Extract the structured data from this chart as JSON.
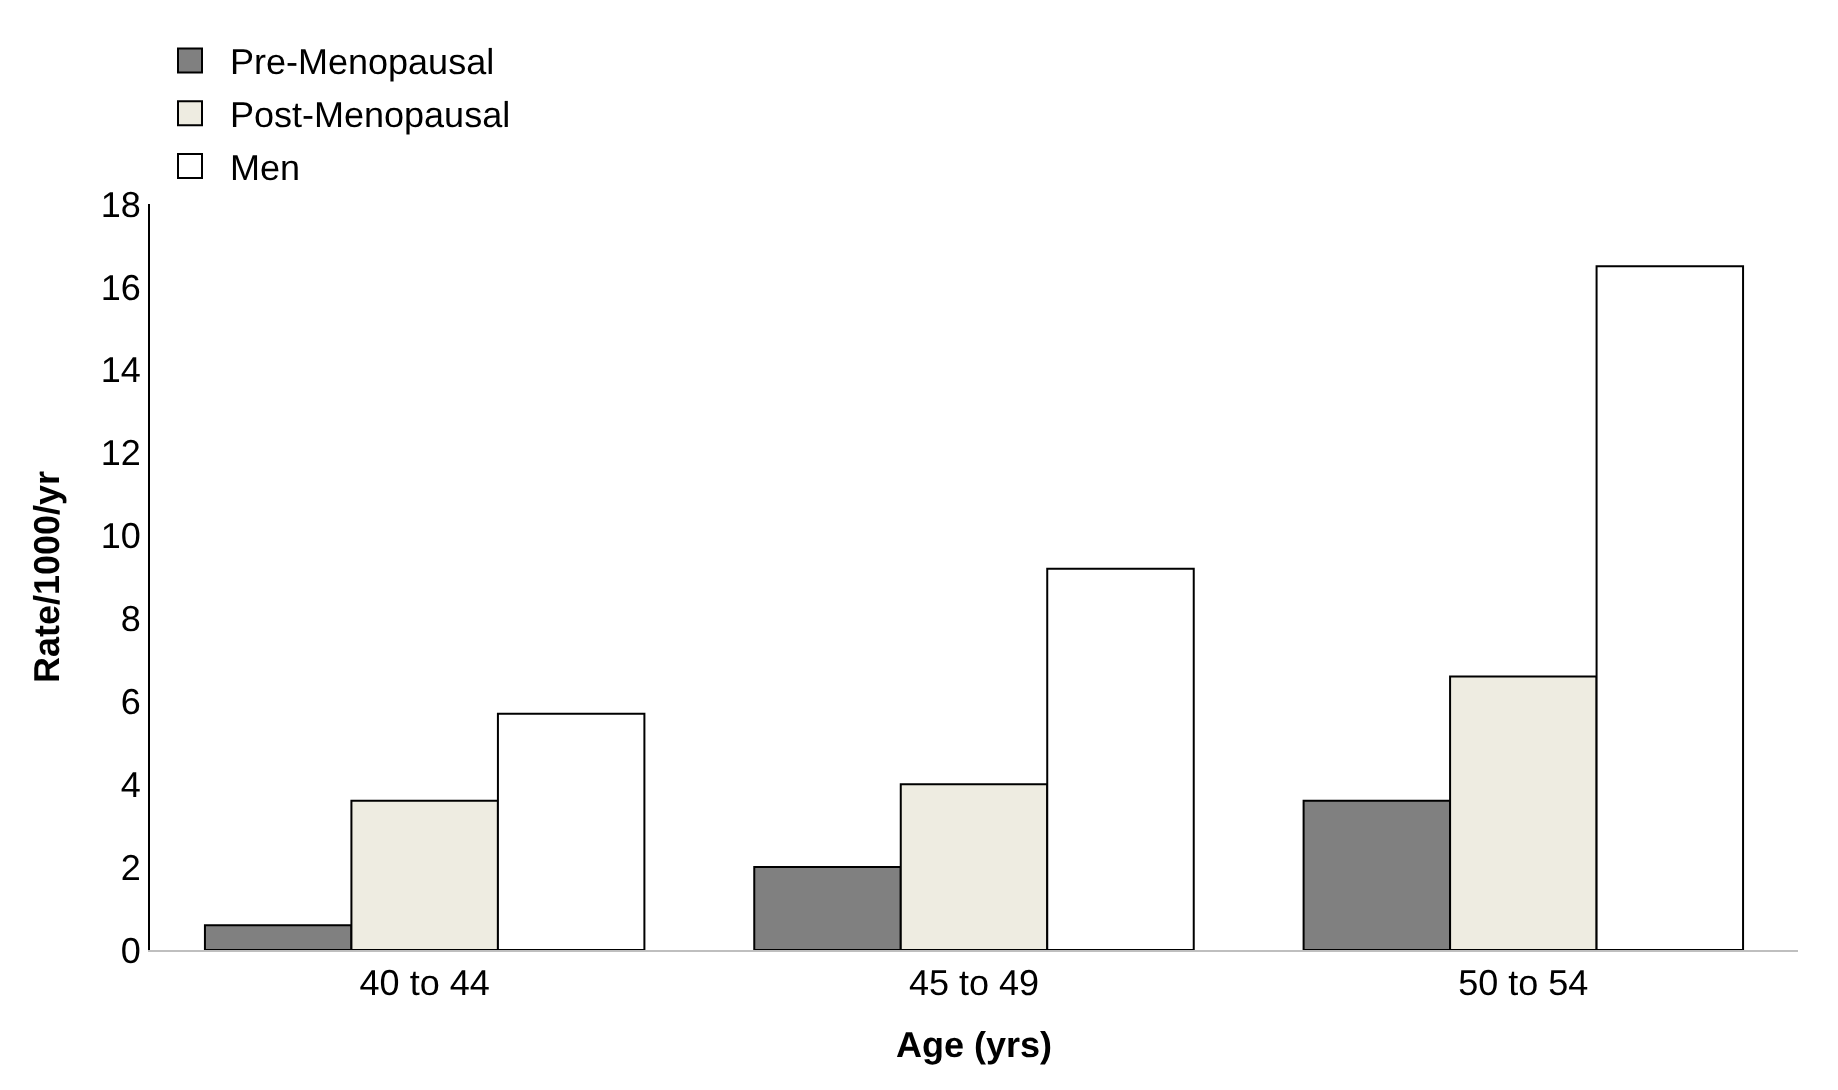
{
  "chart_data": {
    "type": "bar",
    "xlabel": "Age (yrs)",
    "ylabel": "Rate/1000/yr",
    "categories": [
      "40 to 44",
      "45 to 49",
      "50 to 54"
    ],
    "series": [
      {
        "name": "Pre-Menopausal",
        "color": "#808080",
        "values": [
          0.6,
          2.0,
          3.6
        ]
      },
      {
        "name": "Post-Menopausal",
        "color": "#eeece1",
        "values": [
          3.6,
          4.0,
          6.6
        ]
      },
      {
        "name": "Men",
        "color": "#ffffff",
        "values": [
          5.7,
          9.2,
          16.5
        ]
      }
    ],
    "ylim": [
      0,
      18
    ],
    "yticks": [
      0,
      2,
      4,
      6,
      8,
      10,
      12,
      14,
      16,
      18
    ],
    "legend": "top left"
  }
}
